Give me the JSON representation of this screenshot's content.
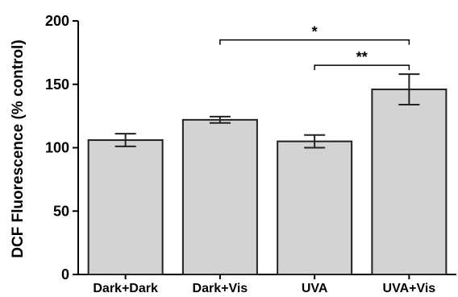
{
  "chart_data": {
    "type": "bar",
    "title": "",
    "xlabel": "",
    "ylabel": "DCF Fluorescence (% control)",
    "categories": [
      "Dark+Dark",
      "Dark+Vis",
      "UVA",
      "UVA+Vis"
    ],
    "values": [
      106,
      122,
      105,
      146
    ],
    "errors": [
      5,
      2.5,
      5,
      12
    ],
    "ylim": [
      0,
      200
    ],
    "yticks": [
      "0",
      "50",
      "100",
      "150",
      "200"
    ],
    "ytick_values": [
      0,
      50,
      100,
      150,
      200
    ],
    "grid": false,
    "bar_color": "#d3d3d3",
    "edge_color": "#222222",
    "significance": [
      {
        "from": 1,
        "to": 3,
        "label": "*",
        "y": 185
      },
      {
        "from": 2,
        "to": 3,
        "label": "**",
        "y": 165
      }
    ]
  }
}
